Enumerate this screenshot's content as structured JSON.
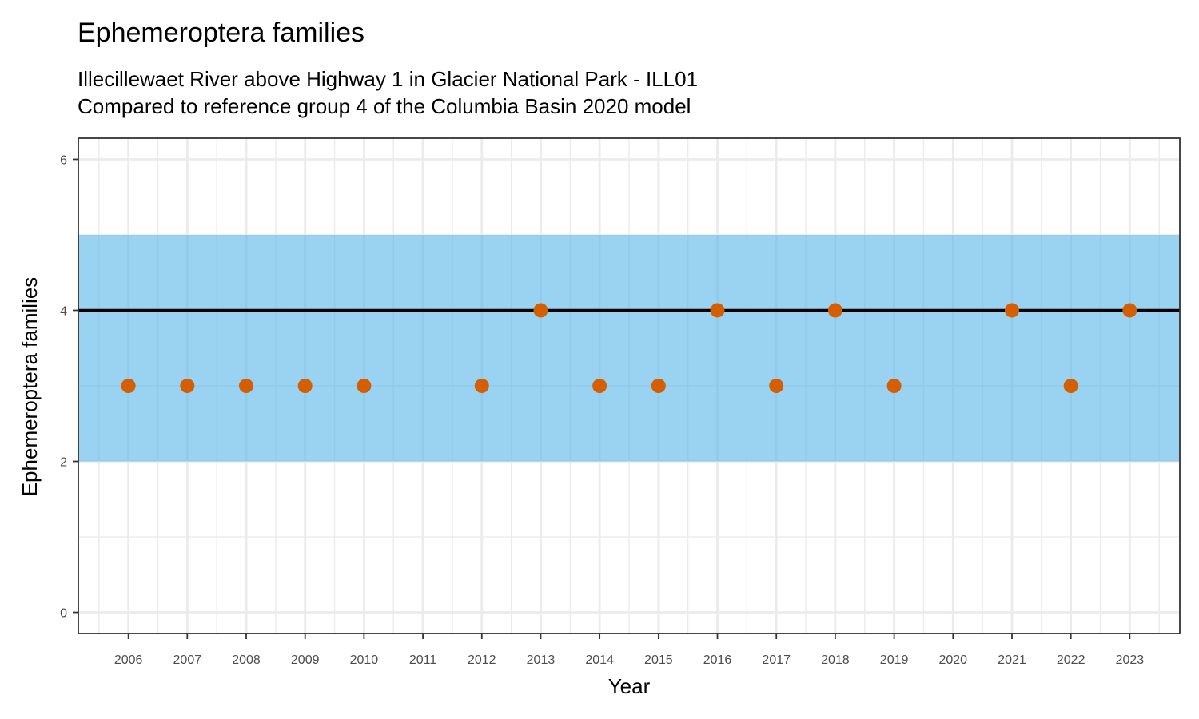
{
  "chart_data": {
    "type": "scatter",
    "title": "Ephemeroptera families",
    "subtitle_lines": [
      "Illecillewaet River above Highway 1 in Glacier National Park - ILL01",
      "Compared to reference group 4 of the Columbia Basin 2020 model"
    ],
    "xlabel": "Year",
    "ylabel": "Ephemeroptera families",
    "xlim": [
      2005.15,
      2023.85
    ],
    "ylim": [
      -0.28,
      6.28
    ],
    "x_ticks": [
      2006,
      2007,
      2008,
      2009,
      2010,
      2011,
      2012,
      2013,
      2014,
      2015,
      2016,
      2017,
      2018,
      2019,
      2020,
      2021,
      2022,
      2023
    ],
    "y_ticks": [
      0,
      2,
      4,
      6
    ],
    "grid": true,
    "reference_band": {
      "ymin": 2,
      "ymax": 5,
      "color": "#56b4e9"
    },
    "reference_line": {
      "y": 4,
      "color": "#000000"
    },
    "points": [
      {
        "x": 2006,
        "y": 3
      },
      {
        "x": 2007,
        "y": 3
      },
      {
        "x": 2008,
        "y": 3
      },
      {
        "x": 2009,
        "y": 3
      },
      {
        "x": 2010,
        "y": 3
      },
      {
        "x": 2012,
        "y": 3
      },
      {
        "x": 2013,
        "y": 4
      },
      {
        "x": 2014,
        "y": 3
      },
      {
        "x": 2015,
        "y": 3
      },
      {
        "x": 2016,
        "y": 4
      },
      {
        "x": 2017,
        "y": 3
      },
      {
        "x": 2018,
        "y": 4
      },
      {
        "x": 2019,
        "y": 3
      },
      {
        "x": 2021,
        "y": 4
      },
      {
        "x": 2022,
        "y": 3
      },
      {
        "x": 2023,
        "y": 4
      }
    ],
    "point_color": "#d55e00"
  }
}
